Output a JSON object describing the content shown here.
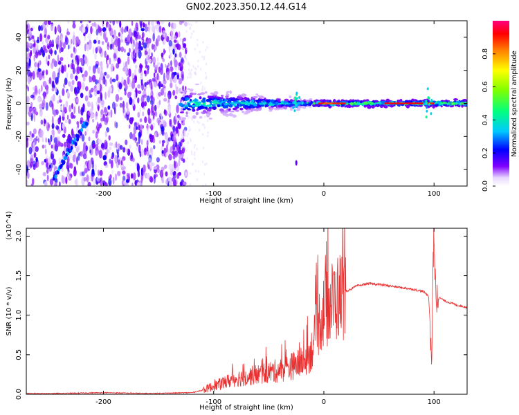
{
  "figure": {
    "title": "GN02.2023.350.12.44.G14"
  },
  "colors": {
    "snr_line": "#e83030",
    "colormap": [
      "#ffffff",
      "#8000ff",
      "#0000ff",
      "#00c8ff",
      "#00ff80",
      "#80ff00",
      "#ffff00",
      "#ff8000",
      "#ff0000",
      "#ff0080"
    ]
  },
  "chart_data": [
    {
      "type": "heatmap",
      "title": "GN02.2023.350.12.44.G14",
      "xlabel": "Height of straight line (km)",
      "ylabel": "Frequency (Hz)",
      "xlim": [
        -270,
        130
      ],
      "ylim": [
        -50,
        50
      ],
      "xticks": [
        -200,
        -100,
        0,
        100
      ],
      "yticks": [
        -40,
        -20,
        0,
        20,
        40
      ],
      "grid": false,
      "colorbar": {
        "label": "Normalized spectral amplitude",
        "range": [
          0,
          1
        ],
        "ticks": [
          "0.0",
          "0.2",
          "0.4",
          "0.6",
          "0.8"
        ]
      },
      "features": {
        "noise_region_x": [
          -270,
          -125
        ],
        "signal_center_freq_hz": 0,
        "signal_band_halfwidth_hz": [
          8,
          1.5
        ],
        "diagonal_streak": {
          "x": [
            -245,
            -215
          ],
          "freq_hz": [
            -45,
            -10
          ]
        },
        "spike_x": [
          95,
          -25
        ]
      }
    },
    {
      "type": "line",
      "xlabel": "Height of straight line (km)",
      "ylabel": "SNR (10 * v/v)",
      "yscale_label": "(x10^4)",
      "xlim": [
        -270,
        130
      ],
      "ylim": [
        0,
        2.1
      ],
      "xticks": [
        -200,
        -100,
        0,
        100
      ],
      "yticks": [
        0.0,
        0.5,
        1.0,
        1.5,
        2.0
      ],
      "grid": false,
      "series": [
        {
          "x": [
            -270,
            -240,
            -200,
            -160,
            -120,
            -110,
            -100,
            -90,
            -80,
            -70,
            -60,
            -50,
            -40,
            -30,
            -20,
            -15,
            -10,
            -5,
            0,
            10,
            20,
            30,
            40,
            50,
            60,
            70,
            80,
            90,
            95,
            98,
            99,
            100,
            101,
            102,
            105,
            110,
            120,
            130
          ],
          "y": [
            0.01,
            0.01,
            0.02,
            0.01,
            0.02,
            0.05,
            0.1,
            0.15,
            0.2,
            0.22,
            0.25,
            0.28,
            0.3,
            0.35,
            0.4,
            0.45,
            0.6,
            0.9,
            1.05,
            1.2,
            1.3,
            1.37,
            1.4,
            1.39,
            1.37,
            1.35,
            1.33,
            1.3,
            1.25,
            0.5,
            1.6,
            2.1,
            1.4,
            1.2,
            1.22,
            1.18,
            1.13,
            1.1
          ]
        }
      ]
    }
  ]
}
